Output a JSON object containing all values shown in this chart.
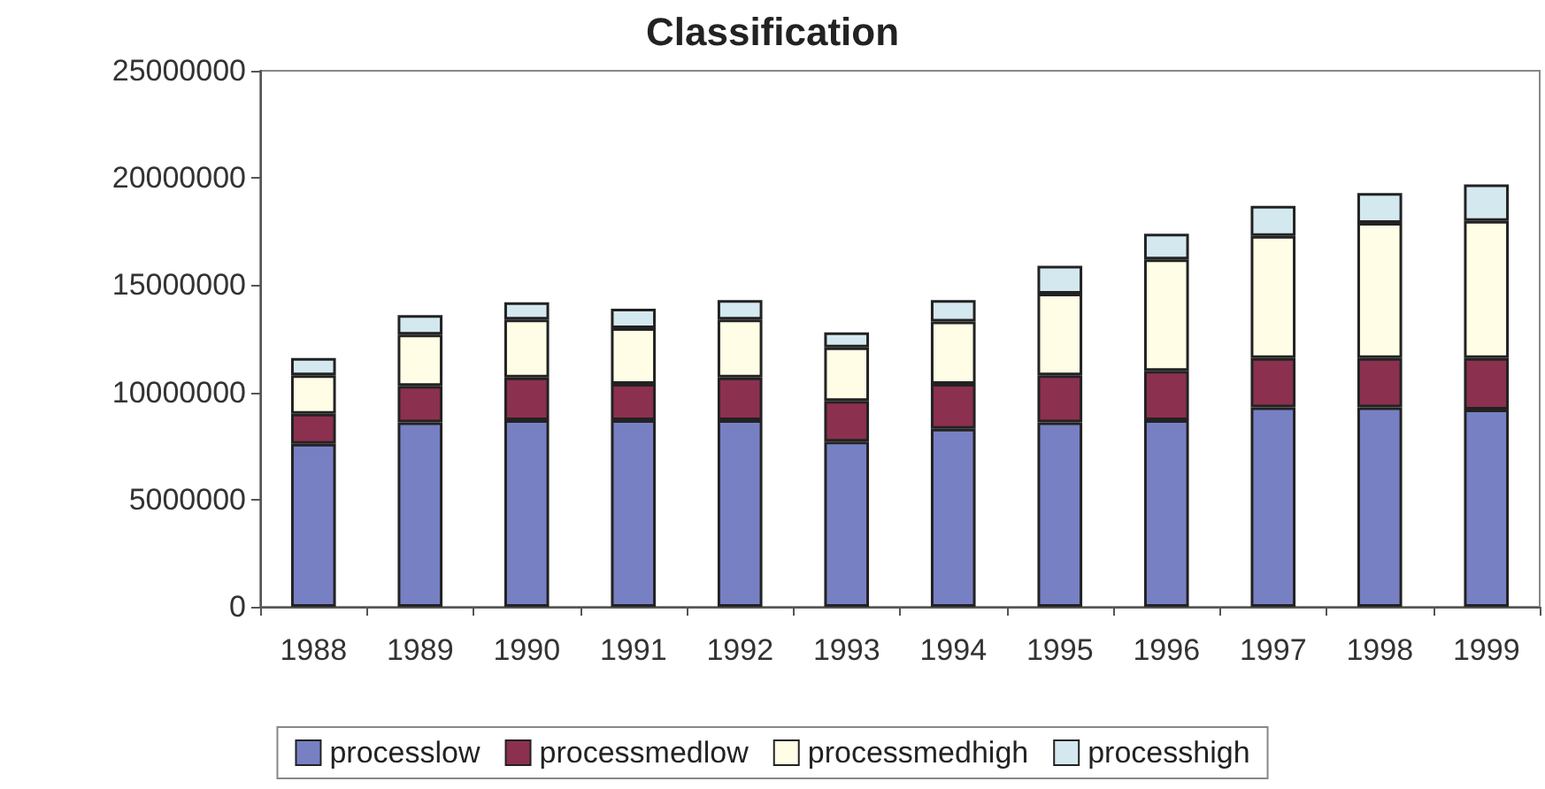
{
  "chart_data": {
    "type": "bar",
    "title": "Classification",
    "stacked": true,
    "legend": "bottom",
    "grid": false,
    "categories": [
      "1988",
      "1989",
      "1990",
      "1991",
      "1992",
      "1993",
      "1994",
      "1995",
      "1996",
      "1997",
      "1998",
      "1999"
    ],
    "ylim": [
      0,
      25000000
    ],
    "yticks": [
      0,
      5000000,
      10000000,
      15000000,
      20000000,
      25000000
    ],
    "series": [
      {
        "name": "processlow",
        "color": "#7880c4",
        "values": [
          7600000,
          8600000,
          8700000,
          8700000,
          8700000,
          7700000,
          8300000,
          8600000,
          8700000,
          9300000,
          9300000,
          9200000
        ]
      },
      {
        "name": "processmedlow",
        "color": "#8c3050",
        "values": [
          1400000,
          1700000,
          2000000,
          1700000,
          2000000,
          1900000,
          2100000,
          2200000,
          2300000,
          2300000,
          2300000,
          2400000
        ]
      },
      {
        "name": "processmedhigh",
        "color": "#fffde6",
        "values": [
          1800000,
          2400000,
          2700000,
          2600000,
          2700000,
          2500000,
          2900000,
          3800000,
          5200000,
          5700000,
          6300000,
          6400000
        ]
      },
      {
        "name": "processhigh",
        "color": "#d4e8ef",
        "values": [
          800000,
          900000,
          800000,
          900000,
          900000,
          700000,
          1000000,
          1300000,
          1200000,
          1400000,
          1400000,
          1700000
        ]
      }
    ]
  }
}
